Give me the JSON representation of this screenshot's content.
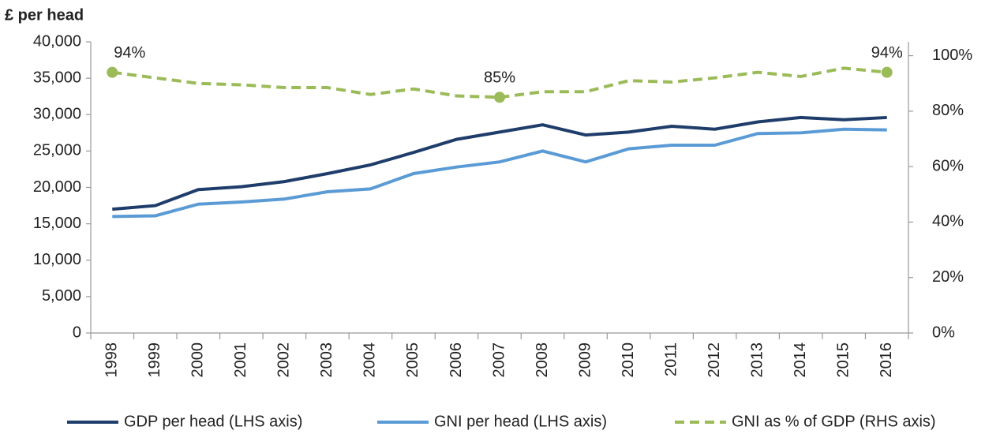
{
  "chart_data": {
    "type": "line",
    "y_axis_label": "£ per head",
    "categories": [
      "1998",
      "1999",
      "2000",
      "2001",
      "2002",
      "2003",
      "2004",
      "2005",
      "2006",
      "2007",
      "2008",
      "2009",
      "2010",
      "2011",
      "2012",
      "2013",
      "2014",
      "2015",
      "2016"
    ],
    "series": [
      {
        "name": "GDP per head (LHS axis)",
        "color": "#1f3d6b",
        "dash": false,
        "values": [
          17000,
          17500,
          19700,
          20100,
          20800,
          21900,
          23100,
          24800,
          26600,
          27600,
          28600,
          27200,
          27600,
          28400,
          28000,
          29000,
          29600,
          29300,
          29600
        ]
      },
      {
        "name": "GNI per head (LHS axis)",
        "color": "#5b9bd5",
        "dash": false,
        "values": [
          16000,
          16100,
          17700,
          18000,
          18400,
          19400,
          19800,
          21900,
          22800,
          23500,
          25000,
          23500,
          25300,
          25800,
          25800,
          27400,
          27500,
          28000,
          27900
        ]
      },
      {
        "name": "GNI as % of GDP (RHS axis)",
        "color": "#9bbb59",
        "dash": true,
        "axis": "y2",
        "values": [
          94,
          92,
          90,
          89.5,
          88.5,
          88.5,
          86,
          88,
          85.5,
          85,
          87,
          87,
          91,
          90.5,
          92,
          94,
          92.5,
          95.5,
          94
        ],
        "value_labels": [
          "94%",
          null,
          null,
          null,
          null,
          null,
          null,
          null,
          null,
          "85%",
          null,
          null,
          null,
          null,
          null,
          null,
          null,
          null,
          "94%"
        ]
      }
    ],
    "ylim": [
      0,
      40000
    ],
    "yticks": [
      0,
      {
        "value": 5000,
        "label": "5,000"
      },
      {
        "value": 10000,
        "label": "10,000"
      },
      {
        "value": 15000,
        "label": "15,000"
      },
      {
        "value": 20000,
        "label": "20,000"
      },
      {
        "value": 25000,
        "label": "25,000"
      },
      {
        "value": 30000,
        "label": "30,000"
      },
      {
        "value": 35000,
        "label": "35,000"
      },
      {
        "value": 40000,
        "label": "40,000"
      }
    ],
    "y2lim": [
      0,
      105
    ],
    "y2ticks": [
      {
        "value": 0,
        "label": "0%"
      },
      {
        "value": 20,
        "label": "20%"
      },
      {
        "value": 40,
        "label": "40%"
      },
      {
        "value": 60,
        "label": "60%"
      },
      {
        "value": 80,
        "label": "80%"
      },
      {
        "value": 100,
        "label": "100%"
      }
    ],
    "grid": false,
    "legend": "bottom"
  }
}
